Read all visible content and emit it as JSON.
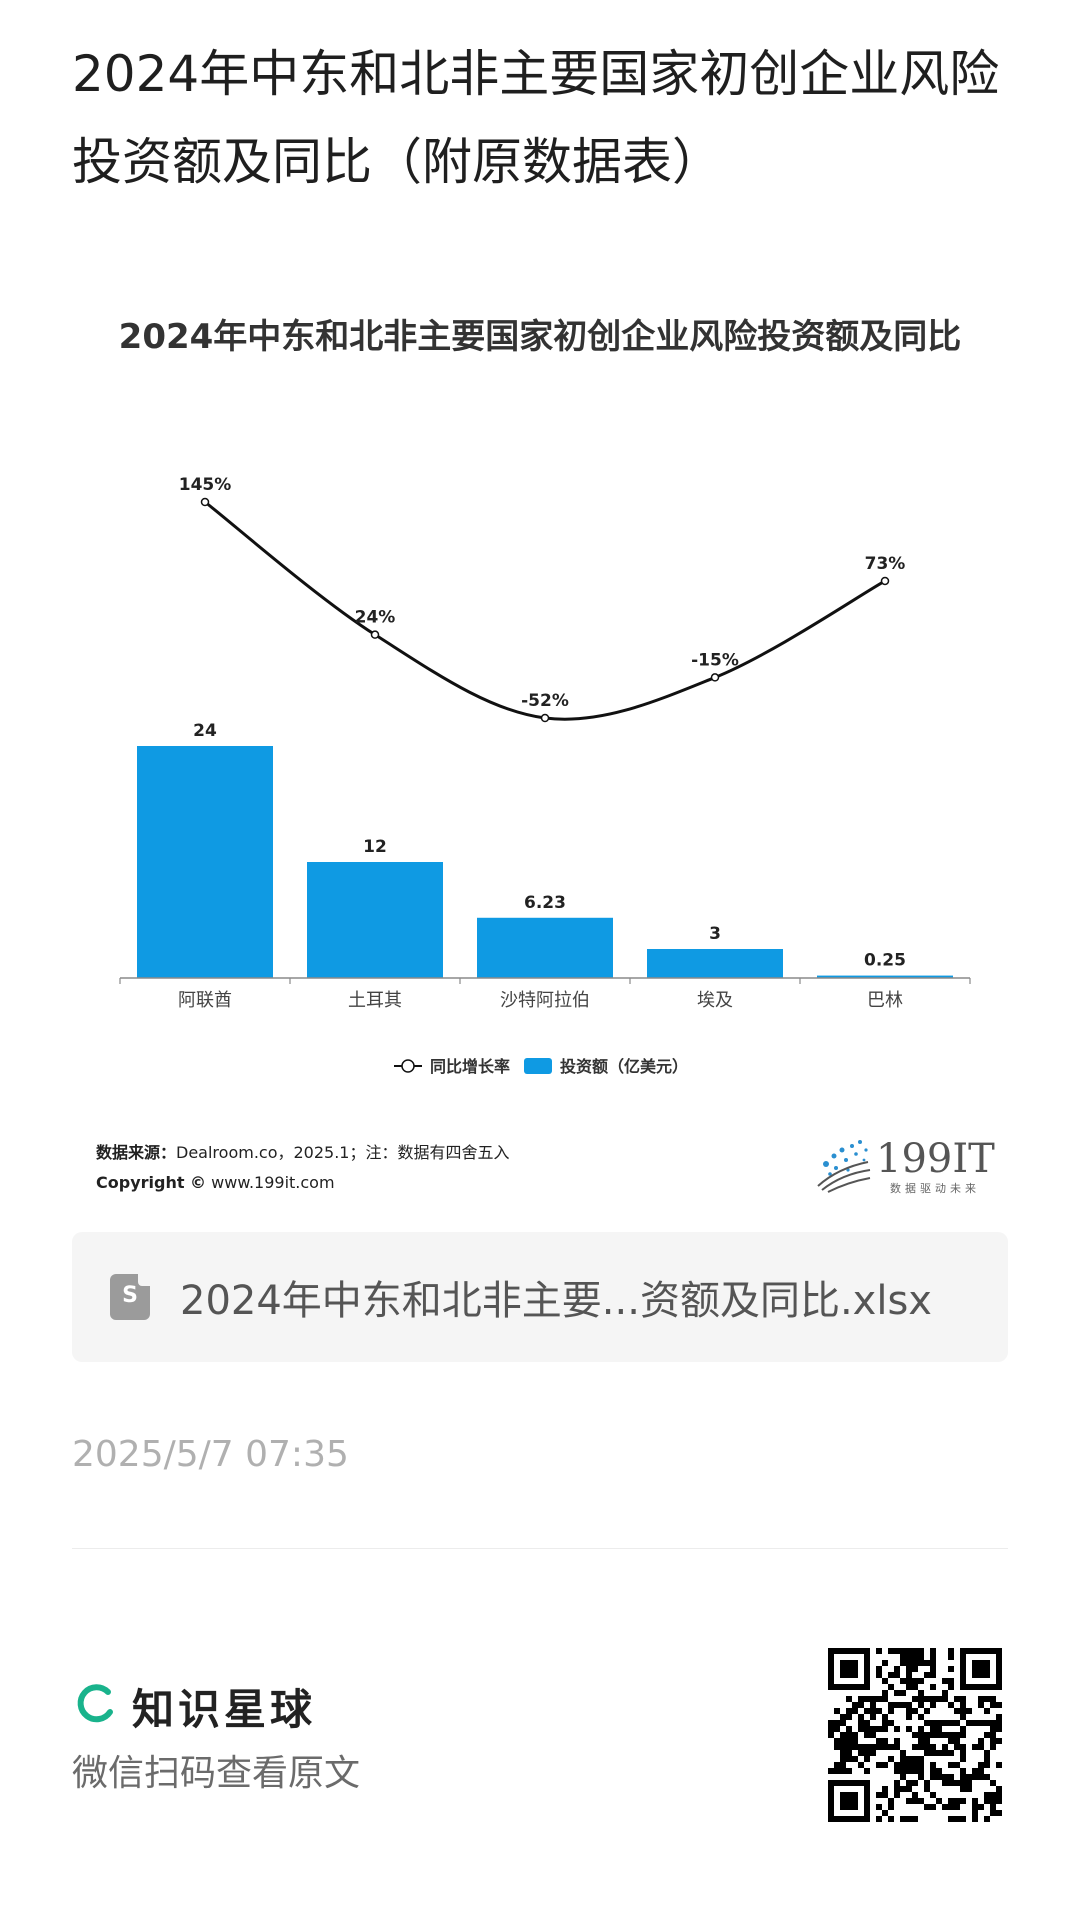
{
  "page": {
    "title": "2024年中东和北非主要国家初创企业风险投资额及同比（附原数据表）"
  },
  "chart_data": {
    "type": "bar",
    "title": "2024年中东和北非主要国家初创企业风险投资额及同比",
    "categories": [
      "阿联酋",
      "土耳其",
      "沙特阿拉伯",
      "埃及",
      "巴林"
    ],
    "series": [
      {
        "name": "投资额（亿美元）",
        "type": "bar",
        "values": [
          24,
          12,
          6.23,
          3,
          0.25
        ],
        "labels": [
          "24",
          "12",
          "6.23",
          "3",
          "0.25"
        ],
        "color": "#0f9ae3"
      },
      {
        "name": "同比增长率",
        "type": "line",
        "values": [
          145,
          24,
          -52,
          -15,
          73
        ],
        "labels": [
          "145%",
          "24%",
          "-52%",
          "-15%",
          "73%"
        ],
        "color": "#111111"
      }
    ],
    "legend": [
      "同比增长率",
      "投资额（亿美元）"
    ],
    "legend_position": "bottom",
    "grid": false
  },
  "source": {
    "label": "数据来源：",
    "text": "Dealroom.co，2025.1；注：数据有四舍五入",
    "copyright_label": "Copyright ©",
    "copyright_url": "www.199it.com"
  },
  "logo": {
    "name": "199IT",
    "tagline": "数据驱动未来",
    "accent": "#2a8fd0"
  },
  "file": {
    "icon": "spreadsheet-file-icon",
    "icon_letter": "S",
    "name": "2024年中东和北非主要...资额及同比.xlsx"
  },
  "timestamp": "2025/5/7 07:35",
  "footer": {
    "brand": "知识星球",
    "brand_color": "#19b38c",
    "scan_tip": "微信扫码查看原文"
  }
}
